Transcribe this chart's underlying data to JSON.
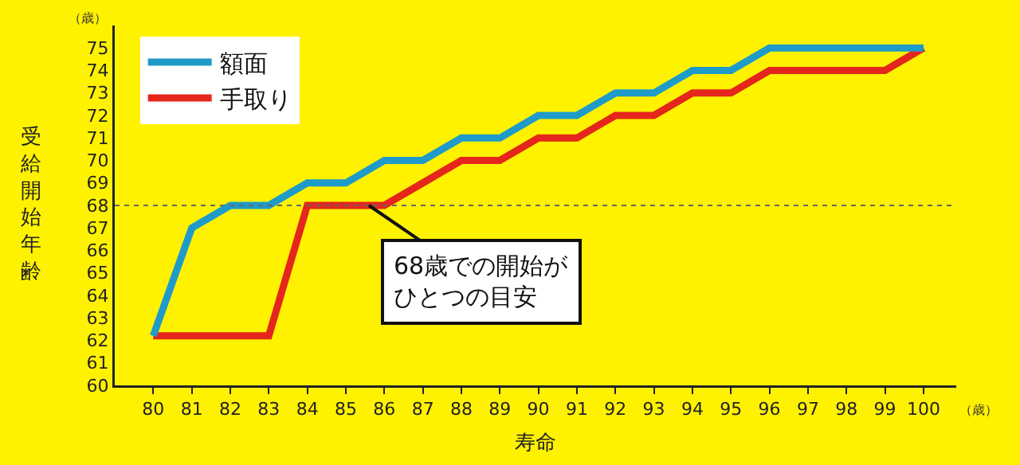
{
  "chart_data": {
    "type": "line",
    "xlabel": "寿命",
    "ylabel": "受給開始年齢",
    "x": [
      80,
      81,
      82,
      83,
      84,
      85,
      86,
      87,
      88,
      89,
      90,
      91,
      92,
      93,
      94,
      95,
      96,
      97,
      98,
      99,
      100
    ],
    "series": [
      {
        "name": "額面",
        "color": "#1e9bc8",
        "values": [
          62.2,
          67,
          68,
          68,
          69,
          69,
          70,
          70,
          71,
          71,
          72,
          72,
          73,
          73,
          74,
          74,
          75,
          75,
          75,
          75,
          75
        ]
      },
      {
        "name": "手取り",
        "color": "#e5261c",
        "values": [
          62.2,
          62.2,
          62.2,
          62.2,
          68,
          68,
          68,
          69,
          70,
          70,
          71,
          71,
          72,
          72,
          73,
          73,
          74,
          74,
          74,
          74,
          75
        ]
      }
    ],
    "xlim": [
      79,
      100.85
    ],
    "xticks": [
      80,
      81,
      82,
      83,
      84,
      85,
      86,
      87,
      88,
      89,
      90,
      91,
      92,
      93,
      94,
      95,
      96,
      97,
      98,
      99,
      100
    ],
    "ylim": [
      60,
      76
    ],
    "yticks": [
      60,
      61,
      62,
      63,
      64,
      65,
      66,
      67,
      68,
      69,
      70,
      71,
      72,
      73,
      74,
      75
    ],
    "grid": false,
    "legend": "top left",
    "marker": "none",
    "line_style": "solid",
    "ref_lines": [
      {
        "axis": "y",
        "value": 68,
        "color": "#666666",
        "line_style": "dotted"
      }
    ],
    "annotations": [
      {
        "text": "68歳での開始がひとつの目安",
        "x": 85.6,
        "y": 68
      },
      "（歳）",
      "（歳）"
    ]
  }
}
